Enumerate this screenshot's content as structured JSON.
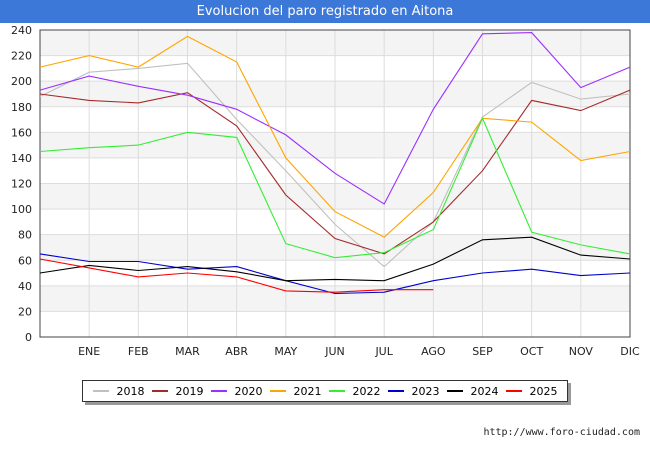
{
  "title": "Evolucion del paro registrado en Aitona",
  "footer": "http://www.foro-ciudad.com",
  "chart_data": {
    "type": "line",
    "title": "Evolucion del paro registrado en Aitona",
    "categories": [
      "",
      "ENE",
      "FEB",
      "MAR",
      "ABR",
      "MAY",
      "JUN",
      "JUL",
      "AGO",
      "SEP",
      "OCT",
      "NOV",
      "DIC"
    ],
    "ylim": [
      0,
      240
    ],
    "yticks": [
      0,
      20,
      40,
      60,
      80,
      100,
      120,
      140,
      160,
      180,
      200,
      220,
      240
    ],
    "grid": true,
    "legend_position": "bottom",
    "series": [
      {
        "name": "2018",
        "color": "#c0c0c0",
        "values": [
          188,
          207,
          210,
          214,
          170,
          130,
          88,
          55,
          90,
          172,
          199,
          186,
          190
        ]
      },
      {
        "name": "2019",
        "color": "#a52a2a",
        "values": [
          190,
          185,
          183,
          191,
          165,
          111,
          77,
          65,
          90,
          130,
          185,
          177,
          193
        ]
      },
      {
        "name": "2020",
        "color": "#9b30ff",
        "values": [
          193,
          204,
          196,
          189,
          178,
          158,
          128,
          104,
          178,
          237,
          238,
          195,
          211
        ]
      },
      {
        "name": "2021",
        "color": "#ffa500",
        "values": [
          211,
          220,
          211,
          235,
          215,
          140,
          98,
          78,
          113,
          171,
          168,
          138,
          145
        ]
      },
      {
        "name": "2022",
        "color": "#33ee33",
        "values": [
          145,
          148,
          150,
          160,
          156,
          73,
          62,
          66,
          84,
          171,
          82,
          72,
          65
        ]
      },
      {
        "name": "2023",
        "color": "#0000cc",
        "values": [
          65,
          59,
          59,
          53,
          55,
          44,
          34,
          35,
          44,
          50,
          53,
          48,
          50
        ]
      },
      {
        "name": "2024",
        "color": "#000000",
        "values": [
          50,
          56,
          52,
          55,
          51,
          44,
          45,
          44,
          57,
          76,
          78,
          64,
          61
        ]
      },
      {
        "name": "2025",
        "color": "#ff0000",
        "values": [
          61,
          54,
          47,
          50,
          47,
          36,
          35,
          37,
          37,
          null,
          null,
          null,
          null
        ]
      }
    ]
  }
}
